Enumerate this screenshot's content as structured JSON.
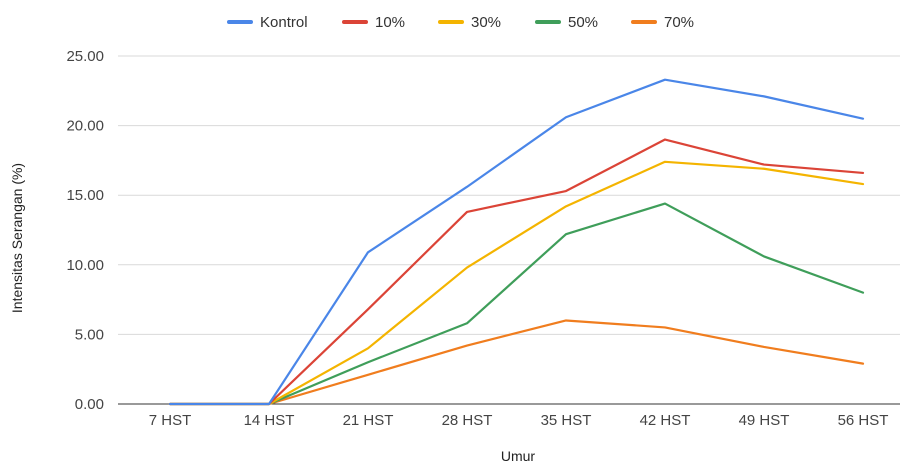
{
  "chart_data": {
    "type": "line",
    "xlabel": "Umur",
    "ylabel": "Intensitas Serangan (%)",
    "ylim": [
      0,
      25
    ],
    "yticks": [
      "0.00",
      "5.00",
      "10.00",
      "15.00",
      "20.00",
      "25.00"
    ],
    "categories": [
      "7 HST",
      "14 HST",
      "21 HST",
      "28 HST",
      "35 HST",
      "42 HST",
      "49 HST",
      "56 HST"
    ],
    "grid": true,
    "legend_position": "top",
    "series": [
      {
        "name": "Kontrol",
        "color": "#4a86e8",
        "values": [
          0,
          0,
          10.9,
          15.6,
          20.6,
          23.3,
          22.1,
          20.5
        ]
      },
      {
        "name": "10%",
        "color": "#db4437",
        "values": [
          0,
          0,
          6.8,
          13.8,
          15.3,
          19.0,
          17.2,
          16.6
        ]
      },
      {
        "name": "30%",
        "color": "#f4b400",
        "values": [
          0,
          0,
          4.0,
          9.8,
          14.2,
          17.4,
          16.9,
          15.8
        ]
      },
      {
        "name": "50%",
        "color": "#3f9e5a",
        "values": [
          0,
          0,
          3.0,
          5.8,
          12.2,
          14.4,
          10.6,
          8.0
        ]
      },
      {
        "name": "70%",
        "color": "#f07d1e",
        "values": [
          0,
          0,
          2.1,
          4.2,
          6.0,
          5.5,
          4.1,
          2.9
        ]
      }
    ]
  }
}
